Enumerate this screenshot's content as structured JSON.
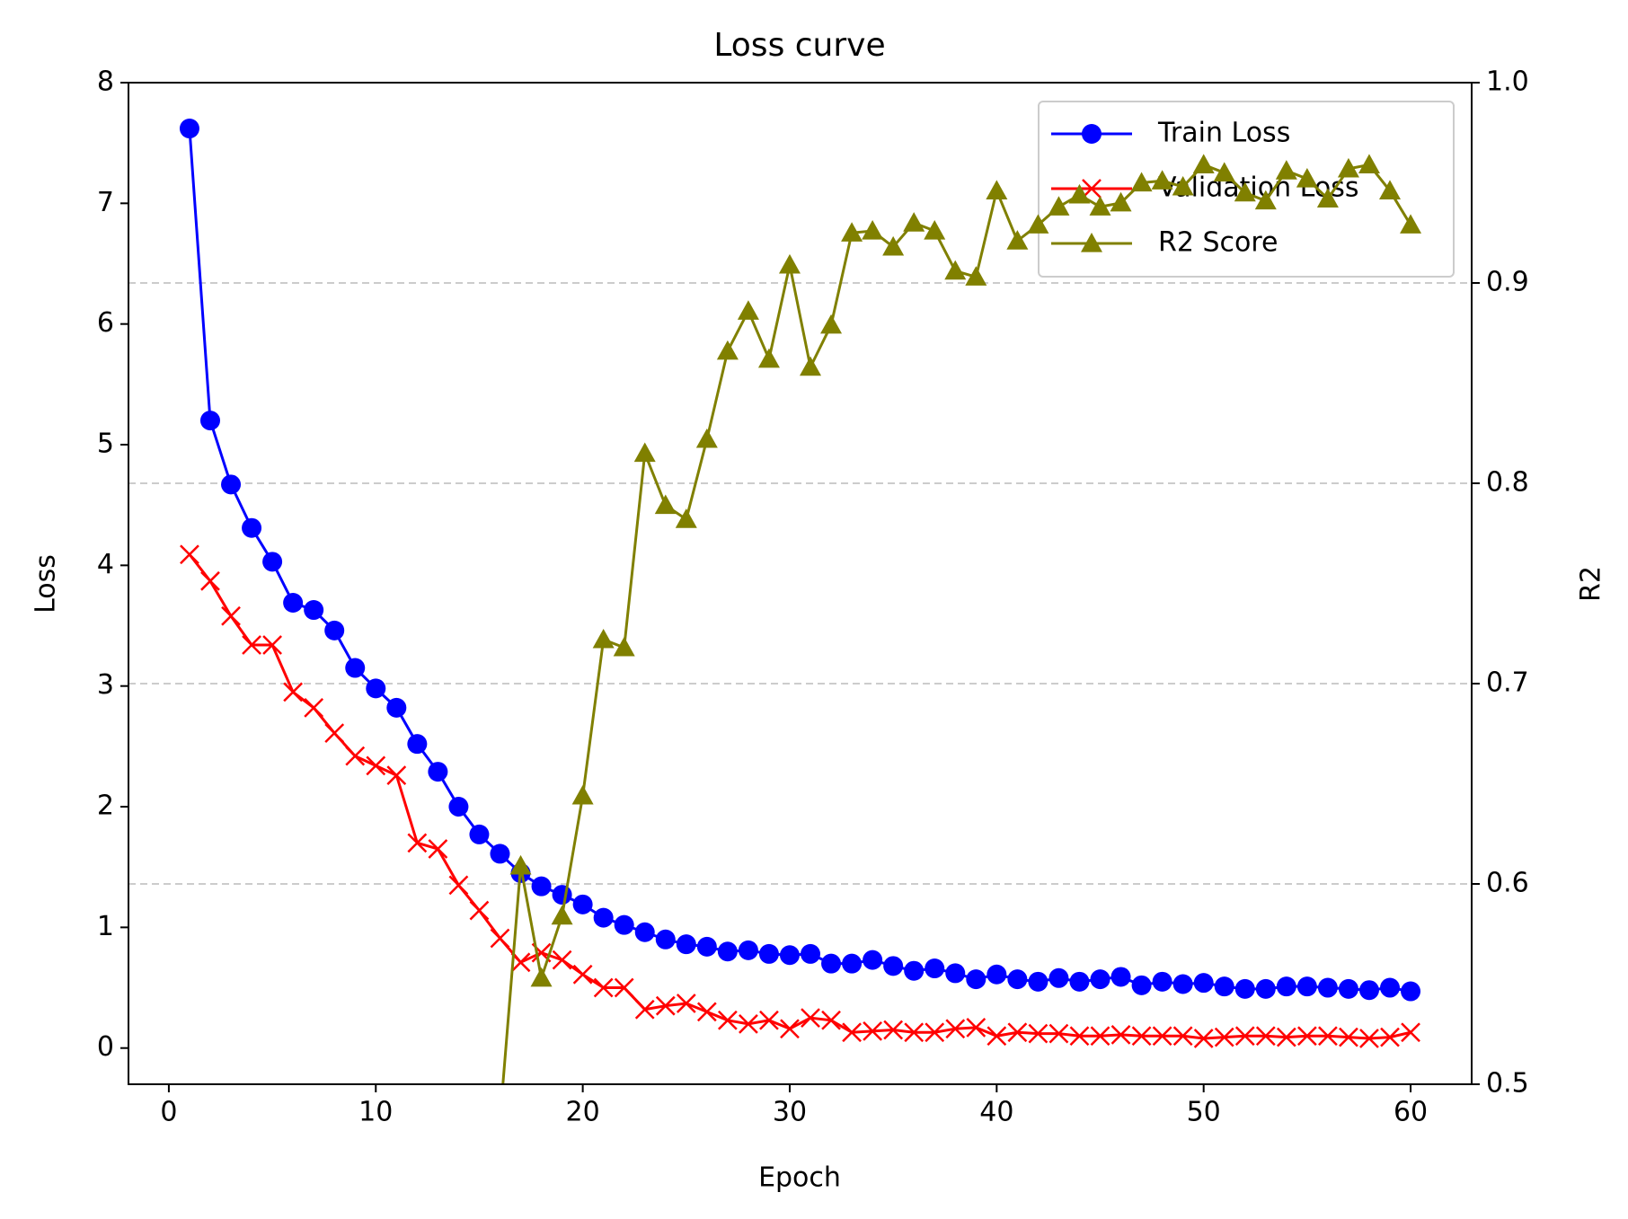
{
  "chart_data": {
    "type": "line",
    "title": "Loss curve",
    "xlabel": "Epoch",
    "ylabel": "Loss",
    "y2label": "R2",
    "x": [
      1,
      2,
      3,
      4,
      5,
      6,
      7,
      8,
      9,
      10,
      11,
      12,
      13,
      14,
      15,
      16,
      17,
      18,
      19,
      20,
      21,
      22,
      23,
      24,
      25,
      26,
      27,
      28,
      29,
      30,
      31,
      32,
      33,
      34,
      35,
      36,
      37,
      38,
      39,
      40,
      41,
      42,
      43,
      44,
      45,
      46,
      47,
      48,
      49,
      50,
      51,
      52,
      53,
      54,
      55,
      56,
      57,
      58,
      59,
      60
    ],
    "series": [
      {
        "name": "Train Loss",
        "color": "#0000ff",
        "marker": "circle",
        "values": [
          7.62,
          5.2,
          4.67,
          4.31,
          4.03,
          3.69,
          3.63,
          3.46,
          3.15,
          2.98,
          2.82,
          2.52,
          2.29,
          2.0,
          1.77,
          1.61,
          1.45,
          1.34,
          1.27,
          1.19,
          1.08,
          1.02,
          0.96,
          0.9,
          0.86,
          0.84,
          0.8,
          0.81,
          0.78,
          0.77,
          0.78,
          0.7,
          0.7,
          0.73,
          0.68,
          0.64,
          0.66,
          0.62,
          0.57,
          0.61,
          0.57,
          0.55,
          0.58,
          0.55,
          0.57,
          0.59,
          0.52,
          0.55,
          0.53,
          0.54,
          0.51,
          0.49,
          0.49,
          0.51,
          0.51,
          0.5,
          0.49,
          0.48,
          0.5,
          0.47
        ]
      },
      {
        "name": "Validation Loss",
        "color": "#ff0000",
        "marker": "x",
        "values": [
          4.09,
          3.87,
          3.58,
          3.34,
          3.34,
          2.95,
          2.82,
          2.61,
          2.42,
          2.34,
          2.26,
          1.7,
          1.65,
          1.35,
          1.14,
          0.91,
          0.71,
          0.79,
          0.73,
          0.61,
          0.5,
          0.5,
          0.32,
          0.35,
          0.37,
          0.3,
          0.23,
          0.2,
          0.23,
          0.16,
          0.25,
          0.23,
          0.13,
          0.14,
          0.15,
          0.13,
          0.13,
          0.16,
          0.17,
          0.1,
          0.13,
          0.12,
          0.12,
          0.1,
          0.1,
          0.11,
          0.1,
          0.1,
          0.1,
          0.08,
          0.09,
          0.1,
          0.1,
          0.09,
          0.1,
          0.1,
          0.09,
          0.08,
          0.09,
          0.13
        ]
      },
      {
        "name": "R2 Score",
        "color": "#808000",
        "marker": "triangle",
        "axis": "y2",
        "values": [
          null,
          null,
          null,
          null,
          null,
          null,
          null,
          null,
          null,
          null,
          null,
          null,
          null,
          null,
          null,
          0.482,
          0.609,
          0.553,
          0.584,
          0.644,
          0.722,
          0.718,
          0.815,
          0.789,
          0.782,
          0.822,
          0.866,
          0.886,
          0.862,
          0.909,
          0.858,
          0.879,
          0.925,
          0.926,
          0.918,
          0.93,
          0.926,
          0.906,
          0.903,
          0.946,
          0.921,
          0.929,
          0.938,
          0.944,
          0.938,
          0.94,
          0.95,
          0.951,
          0.948,
          0.959,
          0.955,
          0.945,
          0.941,
          0.956,
          0.952,
          0.942,
          0.957,
          0.959,
          0.946,
          0.929
        ]
      }
    ],
    "xlim": [
      -1.95,
      62.95
    ],
    "xticks": [
      0,
      10,
      20,
      30,
      40,
      50,
      60
    ],
    "ylim": [
      -0.3,
      8
    ],
    "yticks": [
      0,
      1,
      2,
      3,
      4,
      5,
      6,
      7,
      8
    ],
    "y2lim": [
      0.5,
      1.0
    ],
    "y2ticks": [
      0.5,
      0.6,
      0.7,
      0.8,
      0.9,
      {
        "value": 1.0,
        "label": "1.0"
      }
    ],
    "grid": true,
    "grid_axis": "y2",
    "legend": "upper right"
  }
}
